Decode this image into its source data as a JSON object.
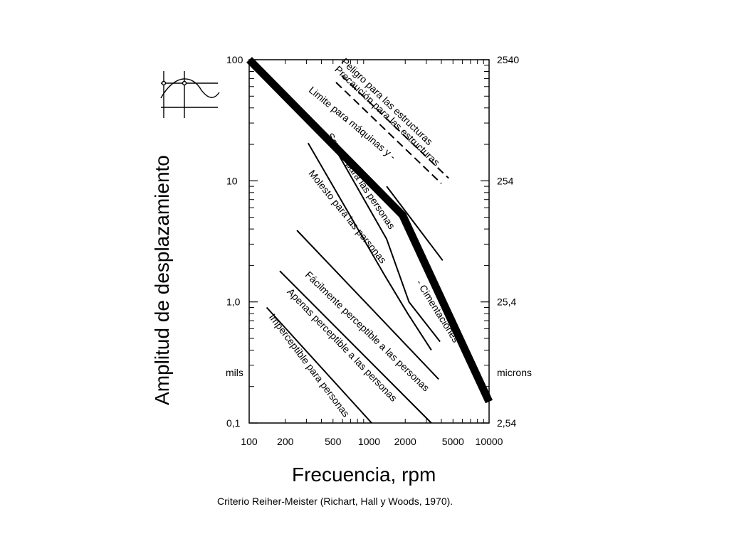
{
  "chart_data": {
    "type": "line",
    "xlabel": "Frecuencia, rpm",
    "ylabel": "Amplitud de desplazamiento",
    "caption": "Criterio Reiher-Meister (Richart, Hall y Woods, 1970).",
    "x_scale": "log",
    "y_scale": "log",
    "xlim": [
      100,
      10000
    ],
    "ylim": [
      0.1,
      100
    ],
    "x_ticks": [
      100,
      200,
      500,
      1000,
      2000,
      5000,
      10000
    ],
    "x_tick_labels": [
      "100",
      "200",
      "500",
      "1000",
      "2000",
      "5000",
      "10000"
    ],
    "y_left_ticks": [
      100,
      10,
      1,
      0.1
    ],
    "y_left_tick_labels": [
      "100",
      "10",
      "1,0",
      "0,1"
    ],
    "y_left_unit": "mils",
    "y_right_ticks": [
      100,
      10,
      1,
      0.1
    ],
    "y_right_tick_labels": [
      "2540",
      "254",
      "25,4",
      "2,54"
    ],
    "y_right_unit": "microns",
    "grid": false,
    "series": [
      {
        "name": "Imperceptible para personas",
        "style": "thin",
        "x": [
          140,
          1050
        ],
        "y": [
          0.9,
          0.1
        ]
      },
      {
        "name": "Apenas perceptible a las personas",
        "style": "thin",
        "x": [
          180,
          3300
        ],
        "y": [
          1.8,
          0.1
        ]
      },
      {
        "name": "Fácilmente perceptible a las personas",
        "style": "thin",
        "x": [
          250,
          3800
        ],
        "y": [
          3.9,
          0.23
        ]
      },
      {
        "name": "Molesto para las personas",
        "style": "thin",
        "x": [
          310,
          1350,
          2100,
          3300
        ],
        "y": [
          20.5,
          1.65,
          0.8,
          0.4
        ]
      },
      {
        "name": "Severo para las personas",
        "style": "thin",
        "x": [
          520,
          1400,
          2150,
          3900
        ],
        "y": [
          18.5,
          3.3,
          1.0,
          0.47
        ]
      },
      {
        "name": "Límite para máquinas y - Cimentaciones",
        "style": "thick",
        "x": [
          100,
          1900,
          10000
        ],
        "y": [
          100,
          5.2,
          0.15
        ]
      },
      {
        "name": "Cimentaciones",
        "style": "thin",
        "x": [
          1400,
          4100
        ],
        "y": [
          9.0,
          2.2
        ]
      },
      {
        "name": "Peligro para las estructuras",
        "style": "dashed",
        "x": [
          590,
          4600
        ],
        "y": [
          74,
          10.5
        ]
      },
      {
        "name": "Precaución para las estructuras",
        "style": "dashed",
        "x": [
          530,
          4000
        ],
        "y": [
          65,
          9.5
        ]
      }
    ],
    "annotations": [
      {
        "text": "Peligro para las estructuras",
        "x": 580,
        "y": 95,
        "angle": 43.5
      },
      {
        "text": "Precaución para las estructuras",
        "x": 510,
        "y": 82,
        "angle": 43.5
      },
      {
        "text": "Limite para máquinas y -",
        "x": 310,
        "y": 55,
        "angle": 39.5
      },
      {
        "text": "Severo para las personas",
        "x": 440,
        "y": 23.5,
        "angle": 56
      },
      {
        "text": "Molesto para las personas",
        "x": 310,
        "y": 11.5,
        "angle": 51
      },
      {
        "text": "- Cimentaciones",
        "x": 2450,
        "y": 1.45,
        "angle": 58
      },
      {
        "text": "Fácilmente perceptible a las personas",
        "x": 290,
        "y": 1.65,
        "angle": 44
      },
      {
        "text": "Apenas perceptible a las personas",
        "x": 205,
        "y": 1.2,
        "angle": 46
      },
      {
        "text": "Imperceptible para personas",
        "x": 145,
        "y": 0.75,
        "angle": 53
      }
    ]
  },
  "colors": {
    "line": "#000000",
    "background": "#ffffff"
  },
  "icons": {
    "amplitude": "sine-wave-amplitude-icon"
  }
}
